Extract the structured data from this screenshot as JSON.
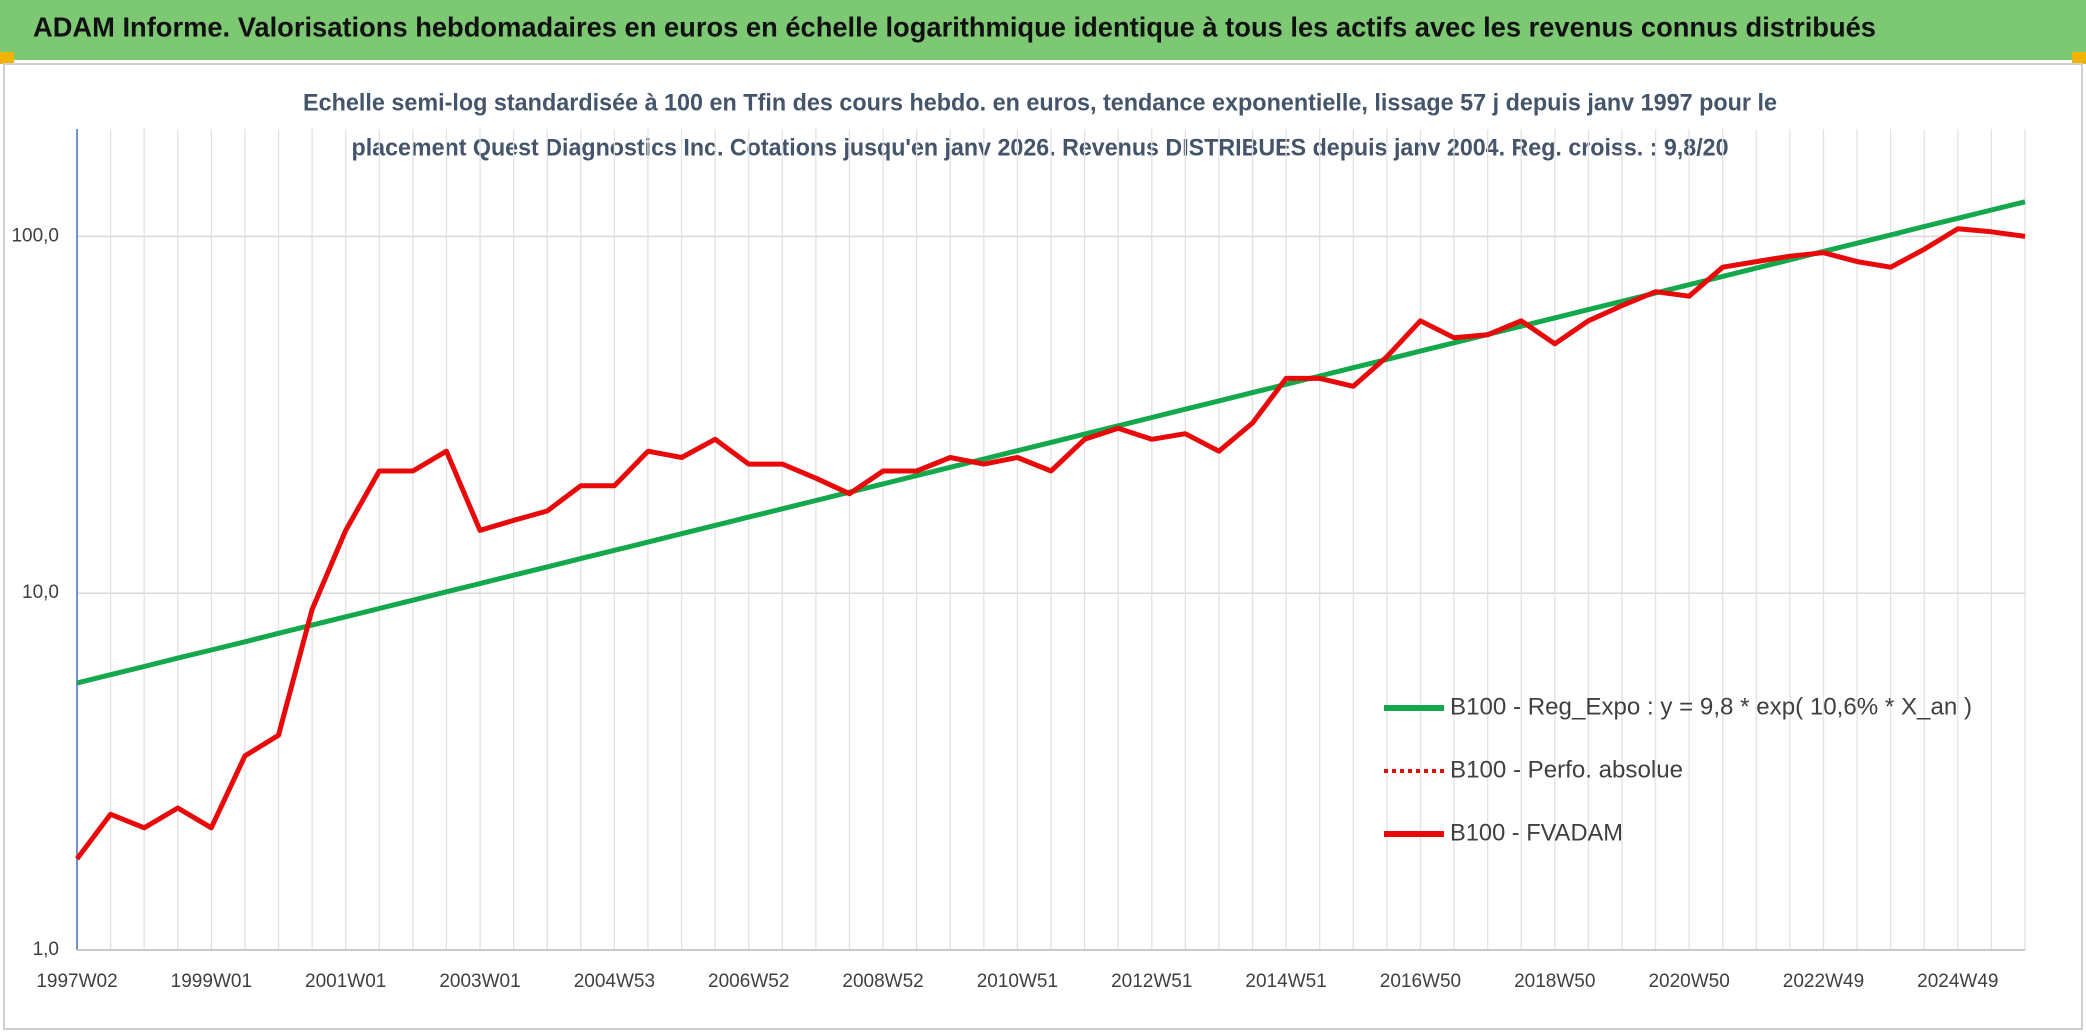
{
  "header": {
    "title": "ADAM Informe. Valorisations hebdomadaires en euros en échelle logarithmique identique à tous les actifs avec les revenus connus distribués"
  },
  "chart_data": {
    "type": "line",
    "title": [
      "Echelle semi-log standardisée à 100 en Tfin des cours hebdo. en euros, tendance exponentielle, lissage 57 j depuis janv 1997 pour le",
      "placement Quest Diagnostics Inc. Cotations jusqu'en janv 2026. Revenus DISTRIBUES depuis janv 2004. Reg. croiss. : 9,8/20"
    ],
    "categories": [
      "1997W02",
      null,
      null,
      null,
      "1999W01",
      null,
      null,
      null,
      "2001W01",
      null,
      null,
      null,
      "2003W01",
      null,
      null,
      null,
      "2004W53",
      null,
      null,
      null,
      "2006W52",
      null,
      null,
      null,
      "2008W52",
      null,
      null,
      null,
      "2010W51",
      null,
      null,
      null,
      "2012W51",
      null,
      null,
      null,
      "2014W51",
      null,
      null,
      null,
      "2016W50",
      null,
      null,
      null,
      "2018W50",
      null,
      null,
      null,
      "2020W50",
      null,
      null,
      null,
      "2022W49",
      null,
      null,
      null,
      "2024W49",
      null,
      null
    ],
    "series": [
      {
        "name": "B100 - Reg_Expo : y = 9,8 * exp( 10,6% *  X_an )",
        "color": "#12a84b",
        "style": "solid",
        "values": [
          5.6,
          5.91,
          6.23,
          6.58,
          6.93,
          7.31,
          7.72,
          8.14,
          8.59,
          9.06,
          9.56,
          10.09,
          10.64,
          11.23,
          11.85,
          12.5,
          13.19,
          13.91,
          14.68,
          15.49,
          16.34,
          17.24,
          18.19,
          19.19,
          20.24,
          21.36,
          22.53,
          23.77,
          25.08,
          26.46,
          27.92,
          29.45,
          31.08,
          32.79,
          34.59,
          36.5,
          38.5,
          40.62,
          42.86,
          45.22,
          47.71,
          50.33,
          53.11,
          56.03,
          59.11,
          62.37,
          65.8,
          69.42,
          73.24,
          77.27,
          81.52,
          86.01,
          90.75,
          95.74,
          101,
          106.6,
          112.4,
          118.6,
          125
        ]
      },
      {
        "name": "B100 - Perfo. absolue",
        "color": "#e8090a",
        "style": "dotted",
        "values": [
          1.8,
          2.4,
          2.2,
          2.5,
          2.2,
          3.5,
          4.0,
          9.0,
          15,
          22,
          22,
          25,
          15,
          16,
          17,
          20,
          20,
          25,
          24,
          27,
          23,
          23,
          21,
          19,
          22,
          22,
          24,
          23,
          24,
          22,
          27,
          29,
          27,
          28,
          25,
          30,
          40,
          40,
          38,
          46,
          58,
          52,
          53,
          58,
          50,
          58,
          64,
          70,
          68,
          82,
          85,
          88,
          90,
          85,
          82,
          92,
          105,
          103,
          100
        ]
      },
      {
        "name": "B100 - FVADAM",
        "color": "#e8090a",
        "style": "solid",
        "values": [
          1.8,
          2.4,
          2.2,
          2.5,
          2.2,
          3.5,
          4.0,
          9.0,
          15,
          22,
          22,
          25,
          15,
          16,
          17,
          20,
          20,
          25,
          24,
          27,
          23,
          23,
          21,
          19,
          22,
          22,
          24,
          23,
          24,
          22,
          27,
          29,
          27,
          28,
          25,
          30,
          40,
          40,
          38,
          46,
          58,
          52,
          53,
          58,
          50,
          58,
          64,
          70,
          68,
          82,
          85,
          88,
          90,
          85,
          82,
          92,
          105,
          103,
          100
        ]
      }
    ],
    "ylim": [
      1,
      200
    ],
    "log_y": true,
    "yticks": [
      {
        "value": 1,
        "label": "1,0"
      },
      {
        "value": 10,
        "label": "10,0"
      },
      {
        "value": 100,
        "label": "100,0"
      }
    ],
    "grid": true,
    "legend": "right"
  }
}
